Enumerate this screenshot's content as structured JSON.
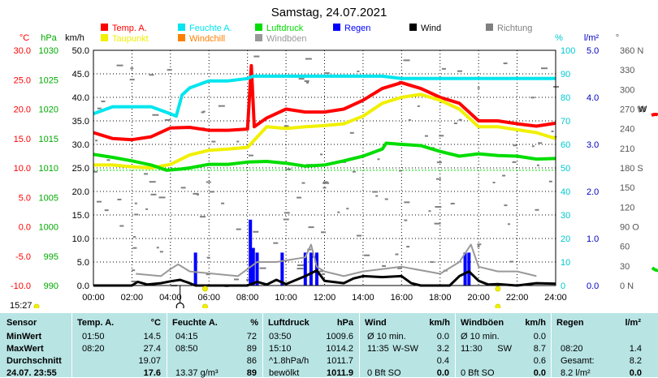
{
  "title": "Samstag, 24.07.2021",
  "colors": {
    "temp": "#ff0000",
    "feuchte": "#00e5ee",
    "luftdruck": "#00dd00",
    "wind": "#000000",
    "windboeen": "#999999",
    "taupunkt": "#f0f000",
    "windchill": "#ff7f00",
    "regen": "#0000ff",
    "richtung": "#808080",
    "grid": "#000000",
    "table_bg": "#b8e4e4"
  },
  "legend": [
    {
      "label": "Temp. A.",
      "color": "#ff0000"
    },
    {
      "label": "Feuchte A.",
      "color": "#00e5ee"
    },
    {
      "label": "Luftdruck",
      "color": "#00dd00"
    },
    {
      "label": "Regen",
      "color": "#0000ff"
    },
    {
      "label": "Wind",
      "color": "#000000"
    },
    {
      "label": "Richtung",
      "color": "#808080"
    },
    {
      "label": "Taupunkt",
      "color": "#f0f000"
    },
    {
      "label": "Windchill",
      "color": "#ff7f00"
    },
    {
      "label": "Windböen",
      "color": "#999999"
    }
  ],
  "axis_units": {
    "temp": "°C",
    "press": "hPa",
    "wind": "km/h",
    "hum": "%",
    "rain": "l/m²",
    "dir": "°",
    "right_edge": "W"
  },
  "axis_ticks": {
    "temp": [
      "30.0",
      "25.0",
      "20.0",
      "15.0",
      "10.0",
      "5.0",
      "0.0",
      "-5.0",
      "-10.0"
    ],
    "press": [
      "1030",
      "1025",
      "1020",
      "1015",
      "1010",
      "1005",
      "1000",
      "995",
      "990"
    ],
    "wind": [
      "50.0",
      "45.0",
      "40.0",
      "35.0",
      "30.0",
      "25.0",
      "20.0",
      "15.0",
      "10.0",
      "5.0",
      "0.0"
    ],
    "hum": [
      "100",
      "90",
      "80",
      "70",
      "60",
      "50",
      "40",
      "30",
      "20",
      "10",
      "0"
    ],
    "rain": [
      "5.0",
      "4.0",
      "3.0",
      "2.0",
      "1.0",
      "0.0"
    ],
    "dir": [
      "360 N",
      "330",
      "300",
      "270 W",
      "240",
      "210",
      "180 S",
      "150",
      "120",
      "90 O",
      "60",
      "30",
      "0 N"
    ],
    "time": [
      "00:00",
      "02:00",
      "04:00",
      "06:00",
      "08:00",
      "10:00",
      "12:00",
      "14:00",
      "16:00",
      "18:00",
      "20:00",
      "22:00",
      "24:00"
    ]
  },
  "marks": {
    "sunrise": "15:27",
    "moon": "o"
  },
  "chart_data": {
    "type": "line",
    "title": "Samstag, 24.07.2021",
    "x_unit": "hour",
    "xlim": [
      0,
      24
    ],
    "series": [
      {
        "name": "Temp. A.",
        "unit": "°C",
        "ylim": [
          -10,
          30
        ],
        "color": "#ff0000",
        "points": [
          [
            0,
            16
          ],
          [
            1,
            15
          ],
          [
            2,
            14.8
          ],
          [
            3,
            15.3
          ],
          [
            4,
            16.8
          ],
          [
            5,
            16.9
          ],
          [
            6,
            16.4
          ],
          [
            7,
            16.4
          ],
          [
            8,
            16.6
          ],
          [
            8.2,
            27.4
          ],
          [
            8.35,
            17.0
          ],
          [
            9,
            18.5
          ],
          [
            10,
            20
          ],
          [
            11,
            19.5
          ],
          [
            12,
            19.5
          ],
          [
            13,
            20
          ],
          [
            14,
            21.5
          ],
          [
            15,
            23.5
          ],
          [
            16,
            24.5
          ],
          [
            17,
            23.5
          ],
          [
            18,
            22
          ],
          [
            19,
            21
          ],
          [
            20,
            18
          ],
          [
            21,
            18
          ],
          [
            22,
            17.5
          ],
          [
            23,
            17.1
          ],
          [
            24,
            17.6
          ]
        ]
      },
      {
        "name": "Taupunkt",
        "unit": "°C",
        "ylim": [
          -10,
          30
        ],
        "color": "#f0f000",
        "points": [
          [
            0,
            10.5
          ],
          [
            1,
            10.5
          ],
          [
            2,
            10.2
          ],
          [
            3,
            10
          ],
          [
            4,
            10.6
          ],
          [
            5,
            12.2
          ],
          [
            6,
            13
          ],
          [
            7,
            13.2
          ],
          [
            8,
            13.5
          ],
          [
            9,
            17
          ],
          [
            10,
            16.7
          ],
          [
            11,
            17
          ],
          [
            12,
            17.2
          ],
          [
            13,
            17.5
          ],
          [
            14,
            18.8
          ],
          [
            15,
            21
          ],
          [
            16,
            22
          ],
          [
            17,
            22.5
          ],
          [
            18,
            21.5
          ],
          [
            19,
            20
          ],
          [
            20,
            17
          ],
          [
            21,
            17
          ],
          [
            22,
            16.5
          ],
          [
            23,
            16
          ],
          [
            24,
            15
          ]
        ]
      },
      {
        "name": "Feuchte A.",
        "unit": "%",
        "ylim": [
          0,
          100
        ],
        "color": "#00e5ee",
        "points": [
          [
            0,
            73
          ],
          [
            1,
            76
          ],
          [
            2,
            76
          ],
          [
            3,
            76
          ],
          [
            4,
            73
          ],
          [
            4.3,
            72
          ],
          [
            4.6,
            81
          ],
          [
            5,
            84
          ],
          [
            6,
            87
          ],
          [
            7,
            87
          ],
          [
            8,
            88
          ],
          [
            8.3,
            89
          ],
          [
            9,
            89
          ],
          [
            10,
            89
          ],
          [
            11,
            89
          ],
          [
            12,
            89
          ],
          [
            13,
            89
          ],
          [
            14,
            89
          ],
          [
            15,
            89
          ],
          [
            16,
            88
          ],
          [
            17,
            88
          ],
          [
            18,
            88
          ],
          [
            19,
            88
          ],
          [
            20,
            88
          ],
          [
            21,
            88
          ],
          [
            22,
            88
          ],
          [
            23,
            88
          ],
          [
            24,
            88
          ]
        ]
      },
      {
        "name": "Luftdruck",
        "unit": "hPa",
        "ylim": [
          990,
          1030
        ],
        "color": "#00dd00",
        "points": [
          [
            0,
            1012.3
          ],
          [
            1,
            1011.8
          ],
          [
            2,
            1011.2
          ],
          [
            3,
            1010.5
          ],
          [
            3.8,
            1009.6
          ],
          [
            4.5,
            1009.8
          ],
          [
            5,
            1010
          ],
          [
            6,
            1010.6
          ],
          [
            7,
            1010.6
          ],
          [
            8,
            1011
          ],
          [
            9,
            1011.1
          ],
          [
            10,
            1010.8
          ],
          [
            11,
            1010.3
          ],
          [
            12,
            1010.5
          ],
          [
            13,
            1011.2
          ],
          [
            14,
            1012
          ],
          [
            15,
            1013.2
          ],
          [
            15.2,
            1014.2
          ],
          [
            16,
            1014
          ],
          [
            17,
            1013.8
          ],
          [
            18,
            1012.8
          ],
          [
            19,
            1012
          ],
          [
            20,
            1012.4
          ],
          [
            21,
            1012.1
          ],
          [
            22,
            1012
          ],
          [
            23,
            1011.5
          ],
          [
            24,
            1011.6
          ]
        ]
      },
      {
        "name": "Wind",
        "unit": "km/h",
        "ylim": [
          0,
          50
        ],
        "color": "#000000",
        "points": [
          [
            0,
            0
          ],
          [
            2,
            0
          ],
          [
            2.3,
            0.8
          ],
          [
            2.8,
            0.2
          ],
          [
            3.5,
            0.5
          ],
          [
            4,
            0.9
          ],
          [
            4.5,
            1.2
          ],
          [
            5,
            0.5
          ],
          [
            5.3,
            0
          ],
          [
            8,
            0
          ],
          [
            8.5,
            0.8
          ],
          [
            9,
            0.2
          ],
          [
            9.5,
            1.2
          ],
          [
            10,
            0.3
          ],
          [
            11,
            2
          ],
          [
            11.6,
            3.2
          ],
          [
            12,
            1
          ],
          [
            13,
            0.5
          ],
          [
            13.5,
            1.5
          ],
          [
            14,
            2
          ],
          [
            15,
            1.8
          ],
          [
            16,
            2
          ],
          [
            16.5,
            0.5
          ],
          [
            17,
            0
          ],
          [
            18.5,
            0
          ],
          [
            19,
            2
          ],
          [
            19.5,
            3
          ],
          [
            20,
            1
          ],
          [
            20.5,
            0.2
          ],
          [
            21,
            0.3
          ],
          [
            22,
            0
          ],
          [
            23,
            0.5
          ],
          [
            24,
            0.4
          ]
        ]
      },
      {
        "name": "Windböen",
        "unit": "km/h",
        "ylim": [
          0,
          50
        ],
        "color": "#999999",
        "points": [
          [
            2.2,
            2.5
          ],
          [
            3.5,
            2
          ],
          [
            4,
            3.5
          ],
          [
            4.4,
            4.5
          ],
          [
            5,
            3
          ],
          [
            7.5,
            2
          ],
          [
            8.5,
            5
          ],
          [
            9.5,
            5
          ],
          [
            11,
            6
          ],
          [
            11.3,
            8.7
          ],
          [
            11.6,
            4
          ],
          [
            12,
            3
          ],
          [
            13,
            2
          ],
          [
            14,
            3
          ],
          [
            16,
            4
          ],
          [
            18,
            2.5
          ],
          [
            19,
            5
          ],
          [
            19.6,
            8.7
          ],
          [
            20,
            4
          ],
          [
            21,
            3
          ],
          [
            22,
            3
          ],
          [
            23,
            2
          ]
        ]
      },
      {
        "name": "Regen",
        "unit": "l/m²",
        "type": "bar",
        "ylim": [
          0,
          5
        ],
        "x": [
          5.3,
          8.15,
          8.3,
          8.5,
          9.8,
          11.0,
          11.3,
          11.6,
          19.3,
          19.5
        ],
        "values": [
          0.7,
          1.4,
          0.8,
          0.7,
          0.7,
          0.7,
          0.7,
          0.7,
          0.7,
          0.7
        ]
      }
    ]
  },
  "table": {
    "headers": [
      {
        "label": "Sensor"
      },
      {
        "label": "Temp. A.",
        "unit": "°C"
      },
      {
        "label": "Feuchte A.",
        "unit": "%"
      },
      {
        "label": "Luftdruck",
        "unit": "hPa"
      },
      {
        "label": "Wind",
        "unit": "km/h"
      },
      {
        "label": "Windböen",
        "unit": "km/h"
      },
      {
        "label": "Regen",
        "unit": "l/m²"
      }
    ],
    "rows": [
      {
        "label": "MinWert",
        "temp": {
          "time": "01:50",
          "val": "14.5"
        },
        "hum": {
          "time": "04:15",
          "val": "72"
        },
        "press": {
          "time": "03:50",
          "val": "1009.6"
        },
        "wind": {
          "time": "Ø 10 min.",
          "dir": "",
          "val": "0.0"
        },
        "gust": {
          "time": "Ø 10 min.",
          "dir": "",
          "val": "0.0"
        },
        "rain": {
          "time": "",
          "val": ""
        }
      },
      {
        "label": "MaxWert",
        "temp": {
          "time": "08:20",
          "val": "27.4"
        },
        "hum": {
          "time": "08:50",
          "val": "89"
        },
        "press": {
          "time": "15:10",
          "val": "1014.2"
        },
        "wind": {
          "time": "11:35",
          "dir": "W-SW",
          "val": "3.2"
        },
        "gust": {
          "time": "11:30",
          "dir": "SW",
          "val": "8.7"
        },
        "rain": {
          "time": "08:20",
          "val": "1.4"
        }
      },
      {
        "label": "Durchschnitt",
        "temp": {
          "time": "",
          "val": "19.07"
        },
        "hum": {
          "time": "",
          "val": "86"
        },
        "press": {
          "time": "^1.8hPa/h",
          "val": "1011.7"
        },
        "wind": {
          "time": "",
          "dir": "",
          "val": "0.4"
        },
        "gust": {
          "time": "",
          "dir": "",
          "val": "0.6"
        },
        "rain": {
          "time": "Gesamt:",
          "val": "8.2"
        }
      },
      {
        "label": "24.07. 23:55",
        "temp": {
          "time": "",
          "val": "17.6"
        },
        "hum": {
          "time": "13.37 g/m³",
          "val": "89"
        },
        "press": {
          "time": "bewölkt",
          "val": "1011.9"
        },
        "wind": {
          "time": "0 Bft SO",
          "dir": "",
          "val": "0.0"
        },
        "gust": {
          "time": "0 Bft SO",
          "dir": "",
          "val": "0.0"
        },
        "rain": {
          "time": "8.2 l/m²",
          "val": "0.0"
        }
      }
    ]
  }
}
